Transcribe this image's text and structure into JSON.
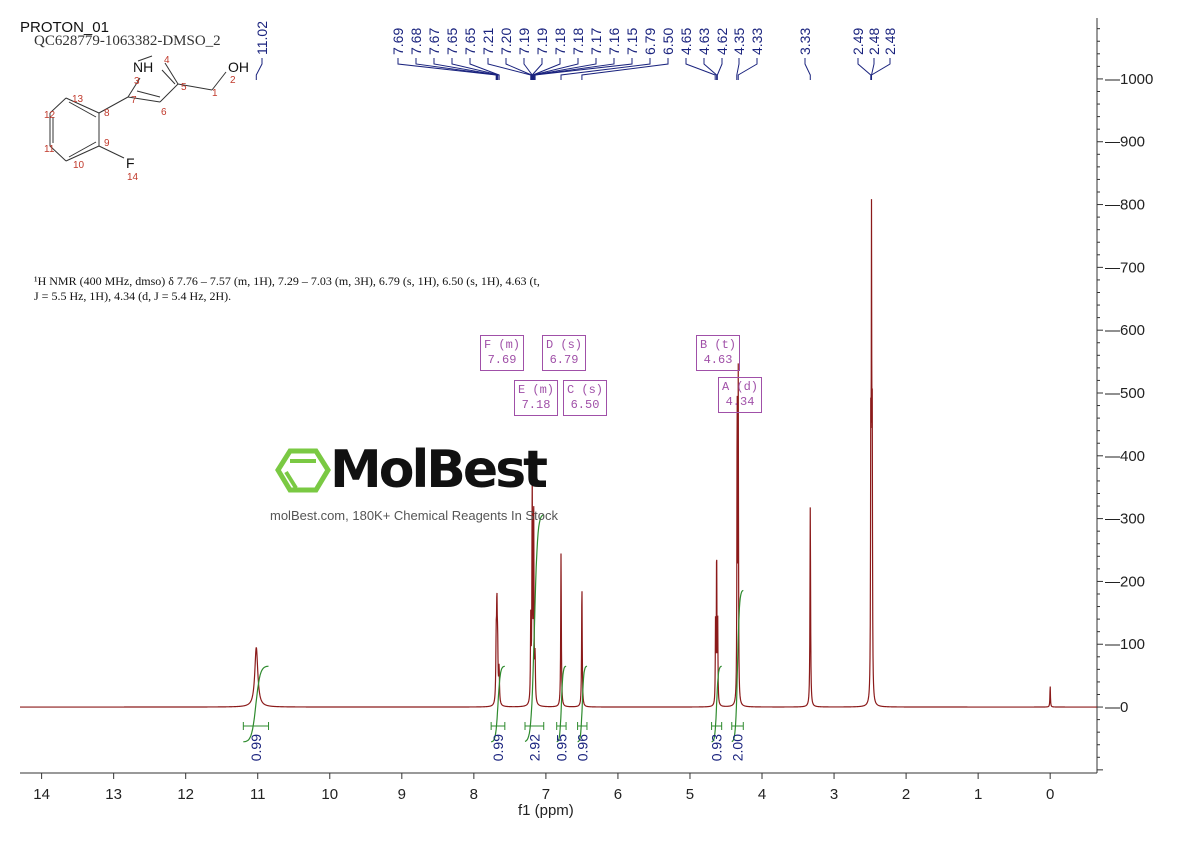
{
  "header": {
    "title": "PROTON_01",
    "sample": "QC628779-1063382-DMSO_2"
  },
  "structure": {
    "atoms": [
      "NH",
      "OH",
      "F"
    ],
    "numbers": [
      "1",
      "2",
      "3",
      "4",
      "5",
      "6",
      "7",
      "8",
      "9",
      "10",
      "11",
      "12",
      "13",
      "14"
    ]
  },
  "description": {
    "line1": "¹H NMR (400 MHz, dmso) δ 7.76 – 7.57 (m, 1H), 7.29 – 7.03 (m, 3H), 6.79 (s, 1H), 6.50 (s, 1H), 4.63 (t,",
    "line2": "J = 5.5 Hz, 1H), 4.34 (d, J = 5.4 Hz, 2H)."
  },
  "multiplet_boxes": [
    {
      "label": "F (m)",
      "value": "7.69"
    },
    {
      "label": "D (s)",
      "value": "6.79"
    },
    {
      "label": "E (m)",
      "value": "7.18"
    },
    {
      "label": "C (s)",
      "value": "6.50"
    },
    {
      "label": "B (t)",
      "value": "4.63"
    },
    {
      "label": "A (d)",
      "value": "4.34"
    }
  ],
  "watermark": {
    "logo": "MolBest",
    "tagline": "molBest.com, 180K+ Chemical Reagents In Stock"
  },
  "colors": {
    "spectrum": "#8b1a1a",
    "peak_labels": "#1a237e",
    "integral": "#2e8b2e",
    "boxes": "#a050a8",
    "logo_green": "#7ac943"
  },
  "chart_data": {
    "type": "line",
    "xlabel": "f1 (ppm)",
    "xlim": [
      14.3,
      -0.65
    ],
    "ylim": [
      -105,
      1097
    ],
    "x_reversed": true,
    "x_ticks": [
      "14",
      "13",
      "12",
      "11",
      "10",
      "9",
      "8",
      "7",
      "6",
      "5",
      "4",
      "3",
      "2",
      "1",
      "0"
    ],
    "y_ticks": [
      "1000",
      "900",
      "800",
      "700",
      "600",
      "500",
      "400",
      "300",
      "200",
      "100",
      "0"
    ],
    "peaks": [
      {
        "ppm": 11.02,
        "height": 95,
        "width": 0.025
      },
      {
        "ppm": 7.69,
        "height": 90,
        "width": 0.006
      },
      {
        "ppm": 7.68,
        "height": 140,
        "width": 0.006
      },
      {
        "ppm": 7.67,
        "height": 80,
        "width": 0.006
      },
      {
        "ppm": 7.65,
        "height": 55,
        "width": 0.006
      },
      {
        "ppm": 7.21,
        "height": 130,
        "width": 0.005
      },
      {
        "ppm": 7.19,
        "height": 345,
        "width": 0.005
      },
      {
        "ppm": 7.17,
        "height": 320,
        "width": 0.005
      },
      {
        "ppm": 7.15,
        "height": 70,
        "width": 0.005
      },
      {
        "ppm": 6.79,
        "height": 245,
        "width": 0.005
      },
      {
        "ppm": 6.5,
        "height": 195,
        "width": 0.005
      },
      {
        "ppm": 4.645,
        "height": 130,
        "width": 0.004
      },
      {
        "ppm": 4.63,
        "height": 255,
        "width": 0.004
      },
      {
        "ppm": 4.615,
        "height": 130,
        "width": 0.004
      },
      {
        "ppm": 4.345,
        "height": 500,
        "width": 0.004
      },
      {
        "ppm": 4.33,
        "height": 515,
        "width": 0.004
      },
      {
        "ppm": 3.33,
        "height": 320,
        "width": 0.005
      },
      {
        "ppm": 2.49,
        "height": 400,
        "width": 0.004
      },
      {
        "ppm": 2.48,
        "height": 700,
        "width": 0.004
      },
      {
        "ppm": 2.47,
        "height": 400,
        "width": 0.004
      },
      {
        "ppm": 0.0,
        "height": 35,
        "width": 0.004
      }
    ],
    "peak_labels": [
      {
        "label": "11.02",
        "ppm": 11.02
      },
      {
        "label": "7.69",
        "ppm": 7.69
      },
      {
        "label": "7.68",
        "ppm": 7.68
      },
      {
        "label": "7.67",
        "ppm": 7.67
      },
      {
        "label": "7.65",
        "ppm": 7.65
      },
      {
        "label": "7.65",
        "ppm": 7.65
      },
      {
        "label": "7.21",
        "ppm": 7.21
      },
      {
        "label": "7.20",
        "ppm": 7.2
      },
      {
        "label": "7.19",
        "ppm": 7.19
      },
      {
        "label": "7.19",
        "ppm": 7.19
      },
      {
        "label": "7.18",
        "ppm": 7.18
      },
      {
        "label": "7.18",
        "ppm": 7.18
      },
      {
        "label": "7.17",
        "ppm": 7.17
      },
      {
        "label": "7.16",
        "ppm": 7.16
      },
      {
        "label": "7.15",
        "ppm": 7.15
      },
      {
        "label": "6.79",
        "ppm": 6.79
      },
      {
        "label": "6.50",
        "ppm": 6.5
      },
      {
        "label": "4.65",
        "ppm": 4.65
      },
      {
        "label": "4.63",
        "ppm": 4.63
      },
      {
        "label": "4.62",
        "ppm": 4.62
      },
      {
        "label": "4.35",
        "ppm": 4.35
      },
      {
        "label": "4.33",
        "ppm": 4.33
      },
      {
        "label": "3.33",
        "ppm": 3.33
      },
      {
        "label": "2.49",
        "ppm": 2.49
      },
      {
        "label": "2.48",
        "ppm": 2.48
      },
      {
        "label": "2.48",
        "ppm": 2.48
      }
    ],
    "integrals": [
      {
        "from": 11.2,
        "to": 10.85,
        "value": "0.99"
      },
      {
        "from": 7.76,
        "to": 7.57,
        "value": "0.99"
      },
      {
        "from": 7.29,
        "to": 7.03,
        "value": "2.92"
      },
      {
        "from": 6.85,
        "to": 6.72,
        "value": "0.95"
      },
      {
        "from": 6.56,
        "to": 6.43,
        "value": "0.96"
      },
      {
        "from": 4.7,
        "to": 4.56,
        "value": "0.93"
      },
      {
        "from": 4.42,
        "to": 4.26,
        "value": "2.00"
      }
    ]
  }
}
